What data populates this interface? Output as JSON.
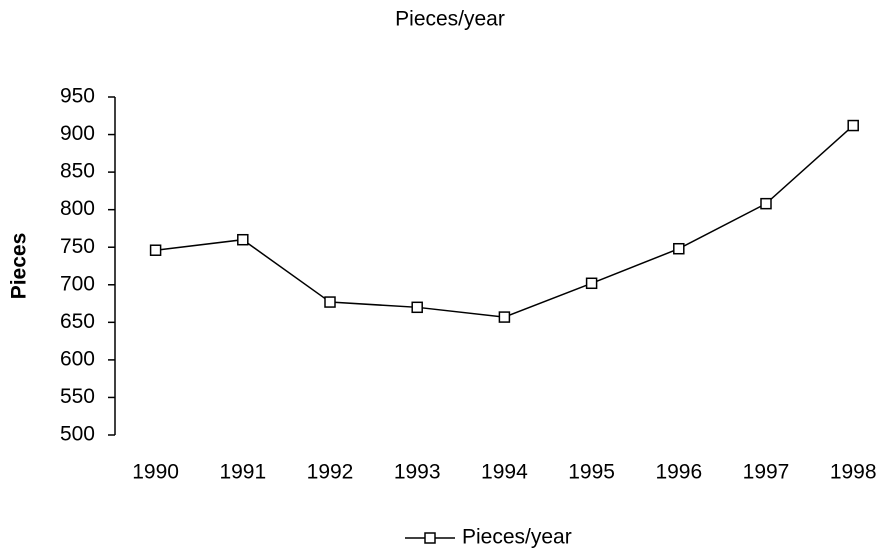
{
  "chart_data": {
    "type": "line",
    "title": "Pieces/year",
    "y_label": "Pieces",
    "categories": [
      "1990",
      "1991",
      "1992",
      "1993",
      "1994",
      "1995",
      "1996",
      "1997",
      "1998"
    ],
    "series": [
      {
        "name": "Pieces/year",
        "color": "#000000",
        "values": [
          746,
          760,
          677,
          670,
          657,
          702,
          748,
          808,
          912
        ]
      }
    ],
    "ylim": [
      500,
      950
    ],
    "yticks": [
      500,
      550,
      600,
      650,
      700,
      750,
      800,
      850,
      900,
      950
    ],
    "grid": false,
    "legend": "bottom"
  }
}
